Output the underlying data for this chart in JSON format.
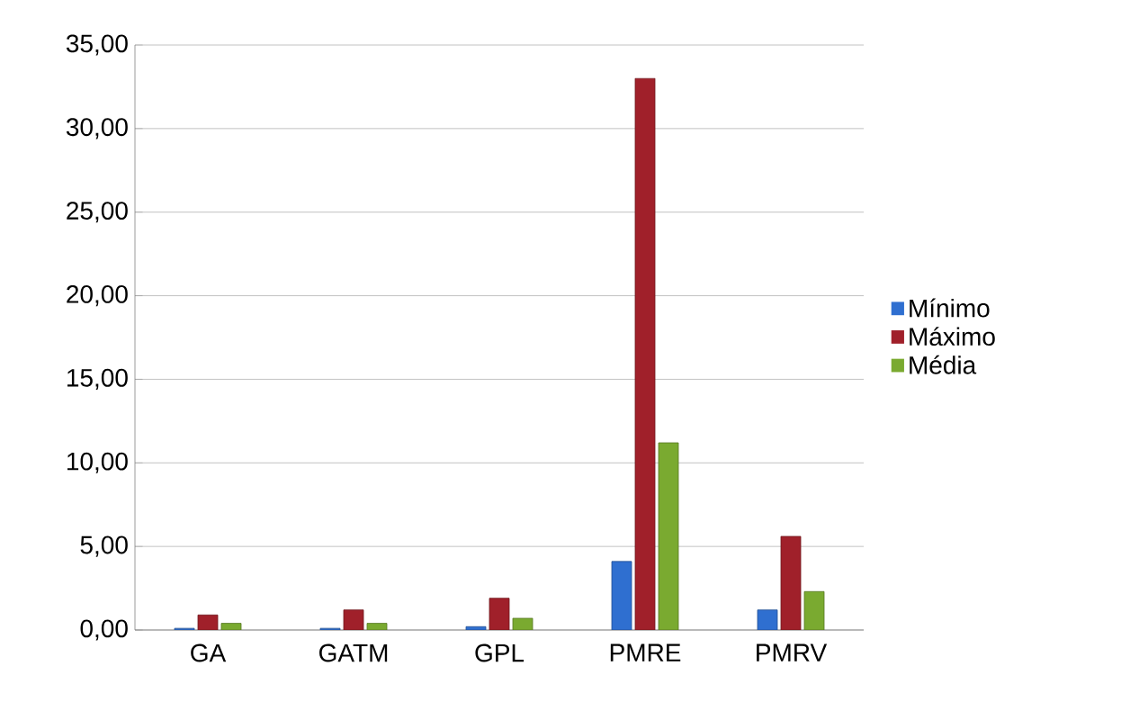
{
  "chart_data": {
    "type": "bar",
    "categories": [
      "GA",
      "GATM",
      "GPL",
      "PMRE",
      "PMRV"
    ],
    "series": [
      {
        "name": "Mínimo",
        "color": "#2f6fd0",
        "values": [
          0.1,
          0.1,
          0.2,
          4.1,
          1.2
        ]
      },
      {
        "name": "Máximo",
        "color": "#a0202a",
        "values": [
          0.9,
          1.2,
          1.9,
          33.0,
          5.6
        ]
      },
      {
        "name": "Média",
        "color": "#7aaa30",
        "values": [
          0.4,
          0.4,
          0.7,
          11.2,
          2.3
        ]
      }
    ],
    "ylim": [
      0,
      35
    ],
    "yticks": [
      {
        "value": 0,
        "label": "0,00"
      },
      {
        "value": 5,
        "label": "5,00"
      },
      {
        "value": 10,
        "label": "10,00"
      },
      {
        "value": 15,
        "label": "15,00"
      },
      {
        "value": 20,
        "label": "20,00"
      },
      {
        "value": 25,
        "label": "25,00"
      },
      {
        "value": 30,
        "label": "30,00"
      },
      {
        "value": 35,
        "label": "35,00"
      }
    ],
    "grid": "y",
    "legend": "right"
  }
}
